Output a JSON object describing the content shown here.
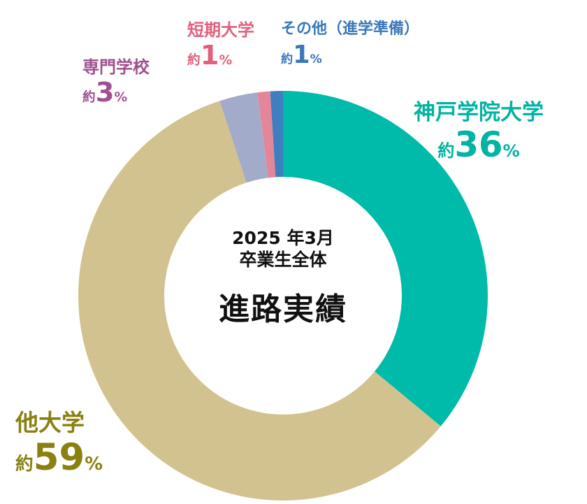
{
  "center": {
    "line1": "2025 年3月",
    "line2": "卒業生全体",
    "line3": "進路実績"
  },
  "labels": [
    {
      "name": "神戸学院大学",
      "prefix": "約",
      "num": "36",
      "pct": "%"
    },
    {
      "name": "他大学",
      "prefix": "約",
      "num": "59",
      "pct": "%"
    },
    {
      "name": "専門学校",
      "prefix": "約",
      "num": "3",
      "pct": "%"
    },
    {
      "name": "短期大学",
      "prefix": "約",
      "num": "1",
      "pct": "%"
    },
    {
      "name": "その他（進学準備）",
      "prefix": "約",
      "num": "1",
      "pct": "%"
    }
  ],
  "chart_data": {
    "type": "pie",
    "title": "",
    "categories": [
      "神戸学院大学",
      "他大学",
      "専門学校",
      "短期大学",
      "その他（進学準備）"
    ],
    "values": [
      36,
      59,
      3,
      1,
      1
    ],
    "colors": [
      "#00bba9",
      "#d2c290",
      "#a2acca",
      "#e3869a",
      "#3f7fc0"
    ],
    "label_colors": [
      "#00b3a2",
      "#8a8010",
      "#a0508e",
      "#e2607e",
      "#3a78bb"
    ],
    "donut": true,
    "start": "top",
    "direction": "clockwise",
    "unit": "%"
  }
}
